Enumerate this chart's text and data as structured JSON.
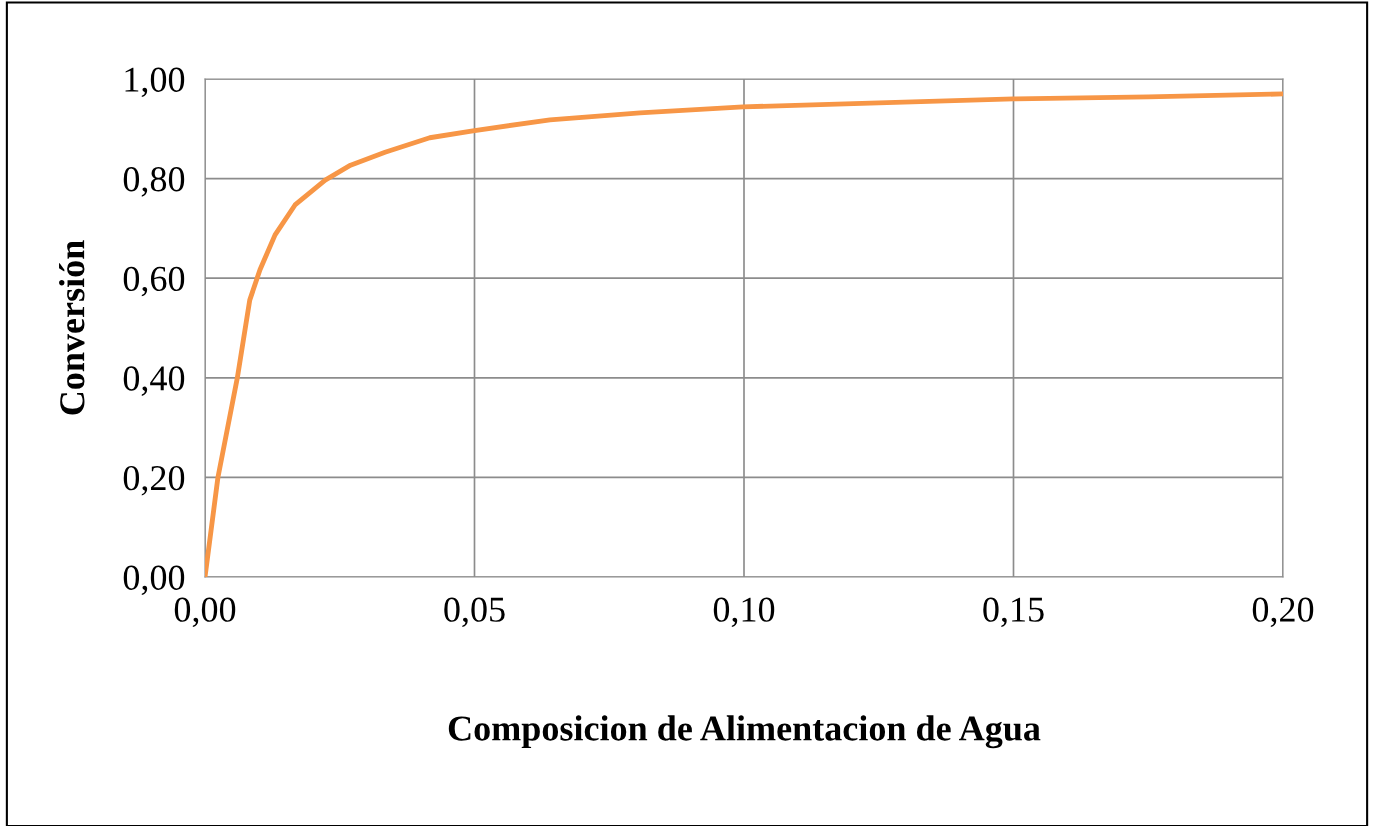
{
  "chart_data": {
    "type": "line",
    "xlabel": "Composicion de Alimentacion de Agua",
    "ylabel": "Conversión",
    "xlim": [
      0,
      0.2
    ],
    "ylim": [
      0,
      1
    ],
    "xticks": [
      {
        "value": 0,
        "label": "0,00"
      },
      {
        "value": 0.05,
        "label": "0,05"
      },
      {
        "value": 0.1,
        "label": "0,10"
      },
      {
        "value": 0.15,
        "label": "0,15"
      },
      {
        "value": 0.2,
        "label": "0,20"
      }
    ],
    "yticks": [
      {
        "value": 0,
        "label": "0,00"
      },
      {
        "value": 0.2,
        "label": "0,20"
      },
      {
        "value": 0.4,
        "label": "0,40"
      },
      {
        "value": 0.6,
        "label": "0,60"
      },
      {
        "value": 0.8,
        "label": "0,80"
      },
      {
        "value": 1,
        "label": "1,00"
      }
    ],
    "grid": true,
    "marker": "none",
    "line_style": "solid",
    "x": [
      0,
      0.0024,
      0.006,
      0.0083,
      0.0102,
      0.013,
      0.0167,
      0.0223,
      0.027,
      0.0334,
      0.0417,
      0.0497,
      0.064,
      0.0807,
      0.0998,
      0.125,
      0.15,
      0.175,
      0.2
    ],
    "series": [
      {
        "color": "#f79646",
        "values": [
          0,
          0.2,
          0.4,
          0.556,
          0.617,
          0.687,
          0.747,
          0.797,
          0.827,
          0.853,
          0.882,
          0.896,
          0.918,
          0.932,
          0.944,
          0.952,
          0.96,
          0.964,
          0.97
        ]
      }
    ]
  }
}
